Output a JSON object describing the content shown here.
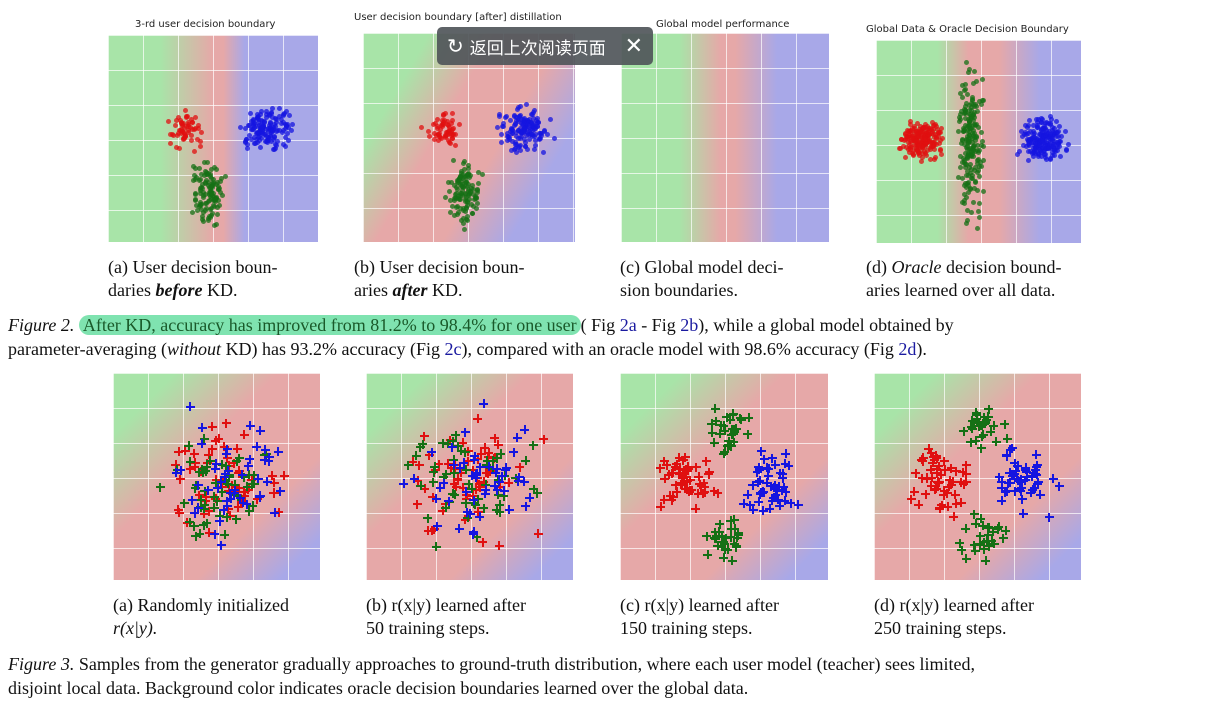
{
  "figure2": {
    "panels": [
      {
        "title": "3-rd user decision boundary",
        "caption": [
          "(a) User decision boun-",
          "daries ",
          "before",
          " KD."
        ]
      },
      {
        "title": "User decision boundary [after] distillation",
        "caption": [
          "(b)  User  decision  boun-",
          "aries ",
          "after",
          " KD."
        ]
      },
      {
        "title": "Global model performance",
        "caption": [
          "(c)  Global  model  deci-",
          "sion boundaries.",
          "",
          ""
        ]
      },
      {
        "title": "Global Data & Oracle Decision Boundary",
        "caption": [
          "(d) ",
          "Oracle",
          " decision bound-",
          "aries learned over all data."
        ]
      }
    ],
    "label": "Figure 2.",
    "highlight": "After KD, accuracy has improved from 81.2% to 98.4% for one user",
    "text1": "( Fig ",
    "ref_a": "2a",
    "text2": " - Fig ",
    "ref_b": "2b",
    "text3": "), while a global model obtained by",
    "line2a": "parameter-averaging (",
    "line2_italic": "without",
    "line2b": " KD) has 93.2% accuracy (Fig ",
    "ref_c": "2c",
    "line2c": "), compared with an oracle model with 98.6% accuracy (Fig ",
    "ref_d": "2d",
    "line2d": ")."
  },
  "figure3": {
    "panels": [
      {
        "line1": "(a) Randomly initialized",
        "line2": "r(x|y)."
      },
      {
        "line1": "(b)  r(x|y)  learned  after",
        "line2": "50 training steps."
      },
      {
        "line1": "(c)  r(x|y)  learned  after",
        "line2": "150 training steps."
      },
      {
        "line1": "(d)  r(x|y)  learned  after",
        "line2": "250 training steps."
      }
    ],
    "label": "Figure 3.",
    "line1": " Samples from the generator gradually approaches to ground-truth distribution, where each user model (teacher) sees limited,",
    "line2": "disjoint local data. Background color indicates oracle decision boundaries learned over the global data."
  },
  "popup": {
    "icon": "return-icon",
    "label": "返回上次阅读页面",
    "close_icon": "close-icon"
  },
  "colors": {
    "green": "#a8e4a8",
    "red": "#e8a8a8",
    "blue": "#a8a8e8",
    "highlight": "#7fe3b0",
    "link": "#1a1aa0"
  }
}
